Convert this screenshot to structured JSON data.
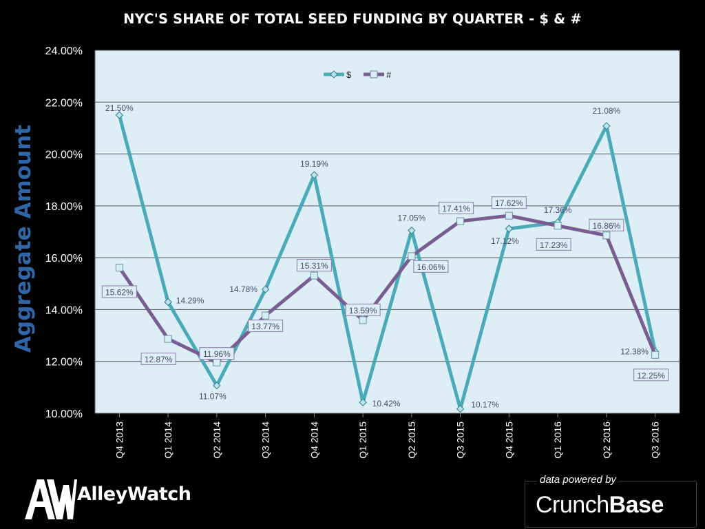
{
  "footer": {
    "brand_logo_letters": "AW",
    "brand_name": "AlleyWatch",
    "powered_caption": "data powered by",
    "powered_name_light": "Crunch",
    "powered_name_bold": "Base"
  },
  "colors": {
    "background": "#000000",
    "plot_background": "#ddeef6",
    "series_dollar": "#4aaab8",
    "series_count": "#7a5d90",
    "ylabel": "#2e66a8"
  },
  "chart_data": {
    "type": "line",
    "title": "NYC'S SHARE OF TOTAL SEED FUNDING BY QUARTER - $ & #",
    "xlabel": "",
    "ylabel": "Aggregate  Amount",
    "categories": [
      "Q4 2013",
      "Q1 2014",
      "Q2 2014",
      "Q3 2014",
      "Q4 2014",
      "Q1 2015",
      "Q2 2015",
      "Q3 2015",
      "Q4 2015",
      "Q1 2016",
      "Q2 2016",
      "Q3 2016"
    ],
    "ylim": [
      0.1,
      0.24
    ],
    "yticks": [
      0.1,
      0.12,
      0.14,
      0.16,
      0.18,
      0.2,
      0.22,
      0.24
    ],
    "ytick_labels": [
      "10.00%",
      "12.00%",
      "14.00%",
      "16.00%",
      "18.00%",
      "20.00%",
      "22.00%",
      "24.00%"
    ],
    "grid": true,
    "legend_position": "top-center",
    "series": [
      {
        "name": "$",
        "marker": "diamond",
        "values": [
          0.215,
          0.1429,
          0.1107,
          0.1478,
          0.1919,
          0.1042,
          0.1705,
          0.1017,
          0.1712,
          0.1736,
          0.2108,
          0.1238
        ],
        "labels": [
          "21.50%",
          "14.29%",
          "11.07%",
          "14.78%",
          "19.19%",
          "10.42%",
          "17.05%",
          "10.17%",
          "17.12%",
          "17.36%",
          "21.08%",
          "12.38%"
        ]
      },
      {
        "name": "#",
        "marker": "square",
        "values": [
          0.1562,
          0.1287,
          0.1196,
          0.1377,
          0.1531,
          0.1359,
          0.1606,
          0.1741,
          0.1762,
          0.1723,
          0.1686,
          0.1225
        ],
        "labels": [
          "15.62%",
          "12.87%",
          "11.96%",
          "13.77%",
          "15.31%",
          "13.59%",
          "16.06%",
          "17.41%",
          "17.62%",
          "17.23%",
          "16.86%",
          "12.25%"
        ]
      }
    ]
  }
}
